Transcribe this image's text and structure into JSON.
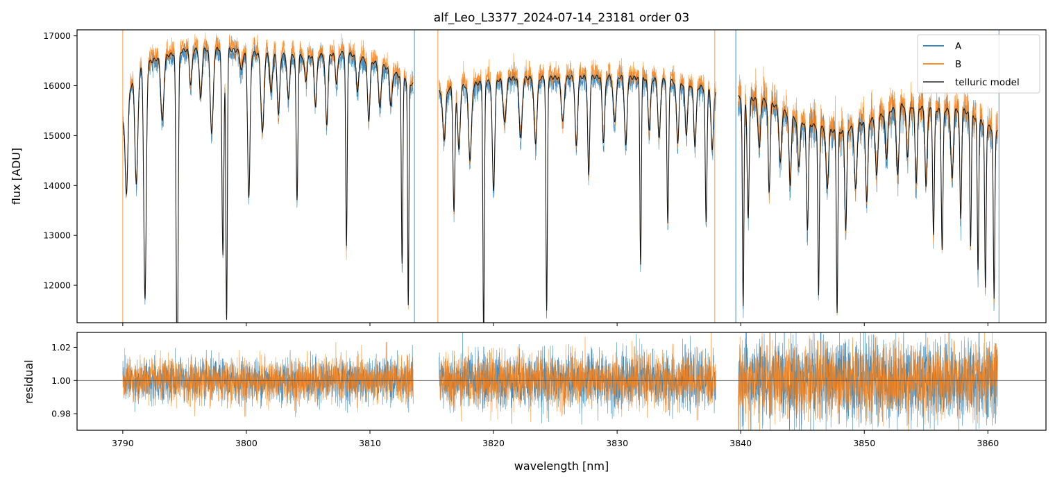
{
  "chart_data": [
    {
      "type": "line",
      "panel": "top",
      "title": "alf_Leo_L3377_2024-07-14_23181  order 03",
      "xlabel": "",
      "ylabel": "flux [ADU]",
      "xlim": [
        3786.3,
        3864.7
      ],
      "ylim": [
        11250,
        17120
      ],
      "xticks": [
        3790,
        3800,
        3810,
        3820,
        3830,
        3840,
        3850,
        3860
      ],
      "yticks": [
        12000,
        13000,
        14000,
        15000,
        16000,
        17000
      ],
      "ytick_labels": [
        "12000",
        "13000",
        "14000",
        "15000",
        "16000",
        "17000"
      ],
      "legend_position": "upper right",
      "segments": [
        [
          3790.0,
          3813.5
        ],
        [
          3815.6,
          3838.0
        ],
        [
          3839.8,
          3860.8
        ]
      ],
      "continuum": {
        "x": [
          3790.0,
          3791.0,
          3792.5,
          3795.0,
          3798.0,
          3801.0,
          3805.0,
          3808.0,
          3811.0,
          3813.5,
          3815.6,
          3818.0,
          3821.0,
          3825.0,
          3830.0,
          3834.0,
          3838.0,
          3839.8,
          3842.0,
          3845.0,
          3848.0,
          3851.0,
          3853.0,
          3856.0,
          3858.0,
          3860.8
        ],
        "y": [
          15400,
          16350,
          16550,
          16750,
          16780,
          16680,
          16620,
          16700,
          16450,
          16050,
          15950,
          16050,
          16180,
          16200,
          16220,
          16150,
          15950,
          15800,
          15750,
          15300,
          15100,
          15400,
          15650,
          15550,
          15550,
          15100
        ]
      },
      "absorption_lines": {
        "center": [
          3790.3,
          3791.1,
          3791.8,
          3793.2,
          3794.4,
          3795.5,
          3796.3,
          3797.2,
          3798.1,
          3798.4,
          3799.6,
          3800.2,
          3801.3,
          3802.0,
          3802.6,
          3803.4,
          3804.1,
          3804.8,
          3805.6,
          3806.5,
          3807.3,
          3808.1,
          3809.0,
          3809.9,
          3810.8,
          3811.7,
          3812.6,
          3813.1,
          3816.0,
          3816.8,
          3817.2,
          3818.1,
          3819.2,
          3820.0,
          3820.9,
          3822.2,
          3823.4,
          3824.3,
          3825.6,
          3826.7,
          3827.7,
          3828.9,
          3829.8,
          3830.7,
          3831.9,
          3832.6,
          3833.4,
          3834.1,
          3834.9,
          3835.6,
          3836.3,
          3837.2,
          3837.7,
          3840.2,
          3840.6,
          3841.5,
          3842.3,
          3843.2,
          3844.0,
          3844.7,
          3845.4,
          3846.3,
          3847.0,
          3847.8,
          3848.5,
          3849.3,
          3850.2,
          3851.0,
          3851.8,
          3852.7,
          3853.5,
          3854.2,
          3855.0,
          3855.6,
          3856.3,
          3857.1,
          3857.8,
          3858.6,
          3859.2,
          3859.8,
          3860.5
        ],
        "depth": [
          1800,
          2300,
          4700,
          1300,
          6500,
          700,
          1000,
          1700,
          4100,
          5400,
          400,
          2900,
          1600,
          800,
          1200,
          900,
          2900,
          500,
          1000,
          1400,
          600,
          3900,
          700,
          1200,
          900,
          700,
          3700,
          4500,
          1000,
          2500,
          1300,
          1500,
          5200,
          2200,
          900,
          1200,
          1300,
          4700,
          900,
          1400,
          2000,
          1300,
          900,
          1400,
          3700,
          1000,
          1200,
          2900,
          1200,
          1000,
          1200,
          2700,
          1200,
          4200,
          2400,
          1000,
          1800,
          1100,
          1400,
          900,
          2100,
          3400,
          1200,
          3600,
          2000,
          1300,
          1600,
          1200,
          900,
          1400,
          1000,
          1500,
          1600,
          2500,
          2800,
          1400,
          2200,
          2600,
          3000,
          3300,
          3400
        ],
        "width": [
          0.11,
          0.12,
          0.1,
          0.12,
          0.08,
          0.1,
          0.1,
          0.12,
          0.08,
          0.06,
          0.1,
          0.1,
          0.12,
          0.1,
          0.1,
          0.1,
          0.07,
          0.1,
          0.1,
          0.1,
          0.1,
          0.06,
          0.1,
          0.1,
          0.1,
          0.1,
          0.06,
          0.05,
          0.12,
          0.08,
          0.1,
          0.12,
          0.06,
          0.1,
          0.12,
          0.12,
          0.12,
          0.06,
          0.12,
          0.1,
          0.08,
          0.1,
          0.12,
          0.1,
          0.06,
          0.1,
          0.1,
          0.07,
          0.1,
          0.1,
          0.1,
          0.07,
          0.1,
          0.06,
          0.08,
          0.1,
          0.08,
          0.1,
          0.09,
          0.1,
          0.08,
          0.06,
          0.1,
          0.06,
          0.08,
          0.1,
          0.09,
          0.1,
          0.1,
          0.1,
          0.1,
          0.09,
          0.09,
          0.07,
          0.07,
          0.1,
          0.07,
          0.06,
          0.06,
          0.06,
          0.06
        ]
      },
      "series": [
        {
          "name": "A",
          "color": "#1f77b4",
          "noise_adu": 110,
          "offset_adu": -60
        },
        {
          "name": "B",
          "color": "#ff7f0e",
          "noise_adu": 110,
          "offset_adu": 80
        },
        {
          "name": "telluric model",
          "color": "#444444"
        }
      ],
      "spikes": [
        {
          "x": 3790.0,
          "series": "B"
        },
        {
          "x": 3813.6,
          "series": "A"
        },
        {
          "x": 3815.5,
          "series": "B"
        },
        {
          "x": 3837.9,
          "series": "B"
        },
        {
          "x": 3839.6,
          "series": "A"
        },
        {
          "x": 3860.9,
          "series": "A"
        }
      ]
    },
    {
      "type": "line",
      "panel": "bottom",
      "title": "",
      "xlabel": "wavelength [nm]",
      "ylabel": "residual",
      "xlim": [
        3786.3,
        3864.7
      ],
      "ylim": [
        0.97,
        1.029
      ],
      "xticks": [
        3790,
        3800,
        3810,
        3820,
        3830,
        3840,
        3850,
        3860
      ],
      "xtick_labels": [
        "3790",
        "3800",
        "3810",
        "3820",
        "3830",
        "3840",
        "3850",
        "3860"
      ],
      "yticks": [
        0.98,
        1.0,
        1.02
      ],
      "ytick_labels": [
        "0.98",
        "1.00",
        "1.02"
      ],
      "reference_line": 1.0,
      "series": [
        {
          "name": "A",
          "color": "#1f77b4",
          "sigma": [
            0.0065,
            0.0085,
            0.0125
          ]
        },
        {
          "name": "B",
          "color": "#ff7f0e",
          "sigma": [
            0.0065,
            0.008,
            0.011
          ]
        }
      ]
    }
  ]
}
